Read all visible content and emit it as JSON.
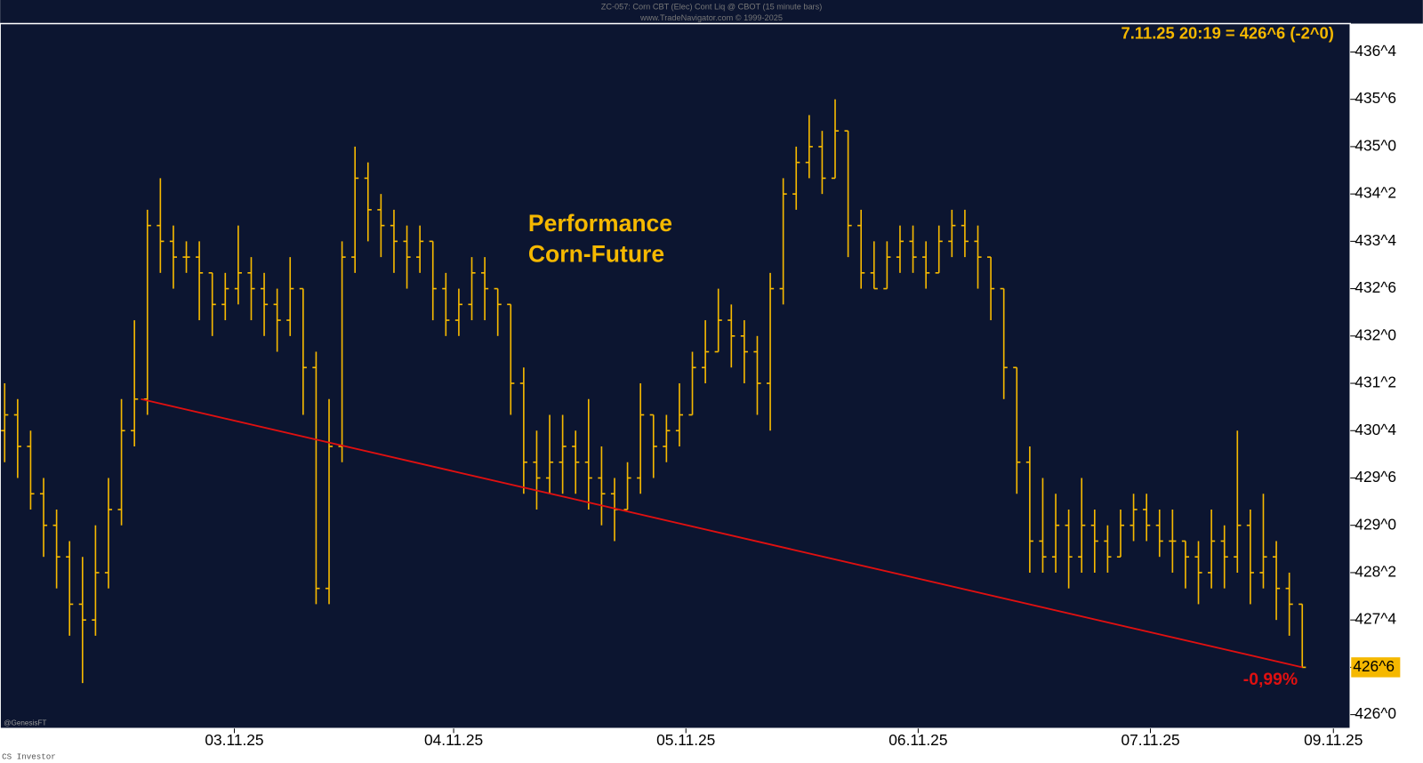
{
  "header": {
    "title": "ZC-057: Corn CBT (Elec) Cont Liq @ CBOT  (15 minute bars)",
    "source": "www.TradeNavigator.com © 1999-2025",
    "watermark": "@GenesisFT",
    "footer": "CS Investor"
  },
  "chart_data": {
    "type": "ohlc",
    "title": [
      "Performance",
      "Corn-Future"
    ],
    "last_quote": "7.11.25 20:19 = 426^6 (-2^0)",
    "color": "#f5b800",
    "open": [
      430.5,
      430.75,
      430.25,
      429.5,
      429.0,
      428.5,
      427.75,
      427.5,
      428.25,
      429.25,
      430.5,
      431.0,
      433.75,
      433.5,
      433.25,
      433.25,
      433.0,
      432.5,
      432.75,
      433.0,
      432.75,
      432.5,
      432.25,
      432.75,
      431.5,
      428.0,
      430.25,
      433.25,
      434.5,
      434.0,
      433.75,
      433.5,
      433.25,
      433.5,
      432.75,
      432.25,
      432.5,
      433.0,
      432.75,
      432.5,
      431.25,
      430.0,
      429.75,
      430.0,
      430.25,
      430.0,
      429.75,
      429.5,
      429.25,
      429.75,
      430.75,
      430.25,
      430.5,
      430.75,
      431.5,
      431.75,
      432.25,
      432.0,
      431.75,
      431.25,
      432.75,
      434.25,
      434.75,
      435.0,
      434.5,
      435.25,
      433.75,
      433.0,
      432.75,
      433.25,
      433.5,
      433.25,
      433.0,
      433.5,
      433.75,
      433.5,
      433.25,
      432.75,
      431.5,
      430.0,
      428.75,
      428.5,
      429.0,
      428.5,
      429.0,
      428.75,
      428.5,
      429.0,
      429.25,
      429.0,
      428.75,
      428.75,
      428.5,
      428.25,
      428.75,
      428.5,
      429.0,
      428.25,
      428.5,
      428.0,
      427.75
    ],
    "high": [
      431.25,
      431.0,
      430.5,
      429.75,
      429.25,
      428.75,
      428.5,
      429.0,
      429.75,
      431.0,
      432.25,
      434.0,
      434.5,
      433.75,
      433.5,
      433.5,
      433.0,
      433.0,
      433.75,
      433.25,
      433.0,
      432.75,
      433.25,
      432.75,
      431.75,
      431.0,
      433.5,
      435.0,
      434.75,
      434.25,
      434.0,
      433.75,
      433.75,
      433.5,
      433.0,
      432.75,
      433.25,
      433.25,
      432.75,
      432.5,
      431.5,
      430.5,
      430.75,
      430.75,
      430.5,
      431.0,
      430.25,
      429.75,
      430.0,
      431.25,
      430.75,
      430.75,
      431.25,
      431.75,
      432.25,
      432.75,
      432.5,
      432.25,
      432.0,
      433.0,
      434.5,
      435.0,
      435.5,
      435.25,
      435.75,
      435.25,
      434.0,
      433.5,
      433.5,
      433.75,
      433.75,
      433.5,
      433.75,
      434.0,
      434.0,
      433.75,
      433.25,
      432.75,
      431.5,
      430.25,
      429.75,
      429.5,
      429.25,
      429.75,
      429.25,
      429.0,
      429.25,
      429.5,
      429.5,
      429.25,
      429.25,
      428.75,
      428.75,
      429.25,
      429.0,
      430.5,
      429.25,
      429.5,
      428.75,
      428.25,
      427.75
    ],
    "low": [
      430.0,
      429.75,
      429.25,
      428.5,
      428.0,
      427.25,
      426.5,
      427.25,
      428.0,
      429.0,
      430.25,
      430.75,
      433.0,
      432.75,
      433.0,
      432.25,
      432.0,
      432.25,
      432.5,
      432.25,
      432.0,
      431.75,
      432.0,
      430.75,
      427.75,
      427.75,
      430.0,
      433.0,
      433.5,
      433.25,
      433.0,
      432.75,
      433.0,
      432.25,
      432.0,
      432.0,
      432.25,
      432.25,
      432.0,
      430.75,
      429.5,
      429.25,
      429.5,
      429.5,
      429.5,
      429.25,
      429.0,
      428.75,
      429.25,
      429.5,
      429.75,
      430.0,
      430.25,
      430.75,
      431.25,
      431.75,
      431.5,
      431.25,
      430.75,
      430.5,
      432.5,
      434.0,
      434.5,
      434.25,
      434.5,
      433.25,
      432.75,
      432.75,
      432.75,
      433.0,
      433.0,
      432.75,
      433.0,
      433.25,
      433.25,
      432.75,
      432.25,
      431.0,
      429.5,
      428.25,
      428.25,
      428.25,
      428.0,
      428.25,
      428.25,
      428.25,
      428.5,
      428.75,
      428.75,
      428.5,
      428.25,
      428.0,
      427.75,
      428.0,
      428.0,
      428.25,
      427.75,
      428.0,
      427.5,
      427.25,
      426.75
    ],
    "close": [
      430.75,
      430.25,
      429.5,
      429.0,
      428.5,
      427.75,
      427.5,
      428.25,
      429.25,
      430.5,
      431.0,
      433.75,
      433.5,
      433.25,
      433.25,
      433.0,
      432.5,
      432.75,
      433.0,
      432.75,
      432.5,
      432.25,
      432.75,
      431.5,
      428.0,
      430.25,
      433.25,
      434.5,
      434.0,
      433.75,
      433.5,
      433.25,
      433.5,
      432.75,
      432.25,
      432.5,
      433.0,
      432.75,
      432.5,
      431.25,
      430.0,
      429.75,
      430.0,
      430.25,
      430.0,
      429.75,
      429.5,
      429.25,
      429.75,
      430.75,
      430.25,
      430.5,
      430.75,
      431.5,
      431.75,
      432.25,
      432.0,
      431.75,
      431.25,
      432.75,
      434.25,
      434.75,
      435.0,
      434.5,
      435.25,
      433.75,
      433.0,
      432.75,
      433.25,
      433.5,
      433.25,
      433.0,
      433.5,
      433.75,
      433.5,
      433.25,
      432.75,
      431.5,
      430.0,
      428.75,
      428.5,
      429.0,
      428.5,
      429.0,
      428.75,
      428.5,
      429.0,
      429.25,
      429.0,
      428.75,
      428.75,
      428.5,
      428.25,
      428.75,
      428.5,
      429.0,
      428.25,
      428.5,
      428.0,
      427.75,
      426.75
    ],
    "xlim": [
      -0.35,
      103.7
    ],
    "xticks": [
      {
        "value": 17.7,
        "label": "03.11.25"
      },
      {
        "value": 34.6,
        "label": "04.11.25"
      },
      {
        "value": 52.5,
        "label": "05.11.25"
      },
      {
        "value": 70.4,
        "label": "06.11.25"
      },
      {
        "value": 88.3,
        "label": "07.11.25"
      },
      {
        "value": 102.4,
        "label": "09.11.25"
      }
    ],
    "ylim": [
      425.78,
      436.95
    ],
    "yticks": [
      {
        "value": 426,
        "label": "426^0"
      },
      {
        "value": 426.75,
        "label": "426^6"
      },
      {
        "value": 427.5,
        "label": "427^4"
      },
      {
        "value": 428.25,
        "label": "428^2"
      },
      {
        "value": 429,
        "label": "429^0"
      },
      {
        "value": 429.75,
        "label": "429^6"
      },
      {
        "value": 430.5,
        "label": "430^4"
      },
      {
        "value": 431.25,
        "label": "431^2"
      },
      {
        "value": 432,
        "label": "432^0"
      },
      {
        "value": 432.75,
        "label": "432^6"
      },
      {
        "value": 433.5,
        "label": "433^4"
      },
      {
        "value": 434.25,
        "label": "434^2"
      },
      {
        "value": 435,
        "label": "435^0"
      },
      {
        "value": 435.75,
        "label": "435^6"
      },
      {
        "value": 436.5,
        "label": "436^4"
      }
    ],
    "price_marker": {
      "value": 426.75,
      "label": "426^6"
    },
    "trendline": {
      "x": [
        10.5,
        100
      ],
      "y": [
        431.0,
        426.75
      ],
      "color": "#e01010",
      "label": "-0,99%"
    }
  }
}
